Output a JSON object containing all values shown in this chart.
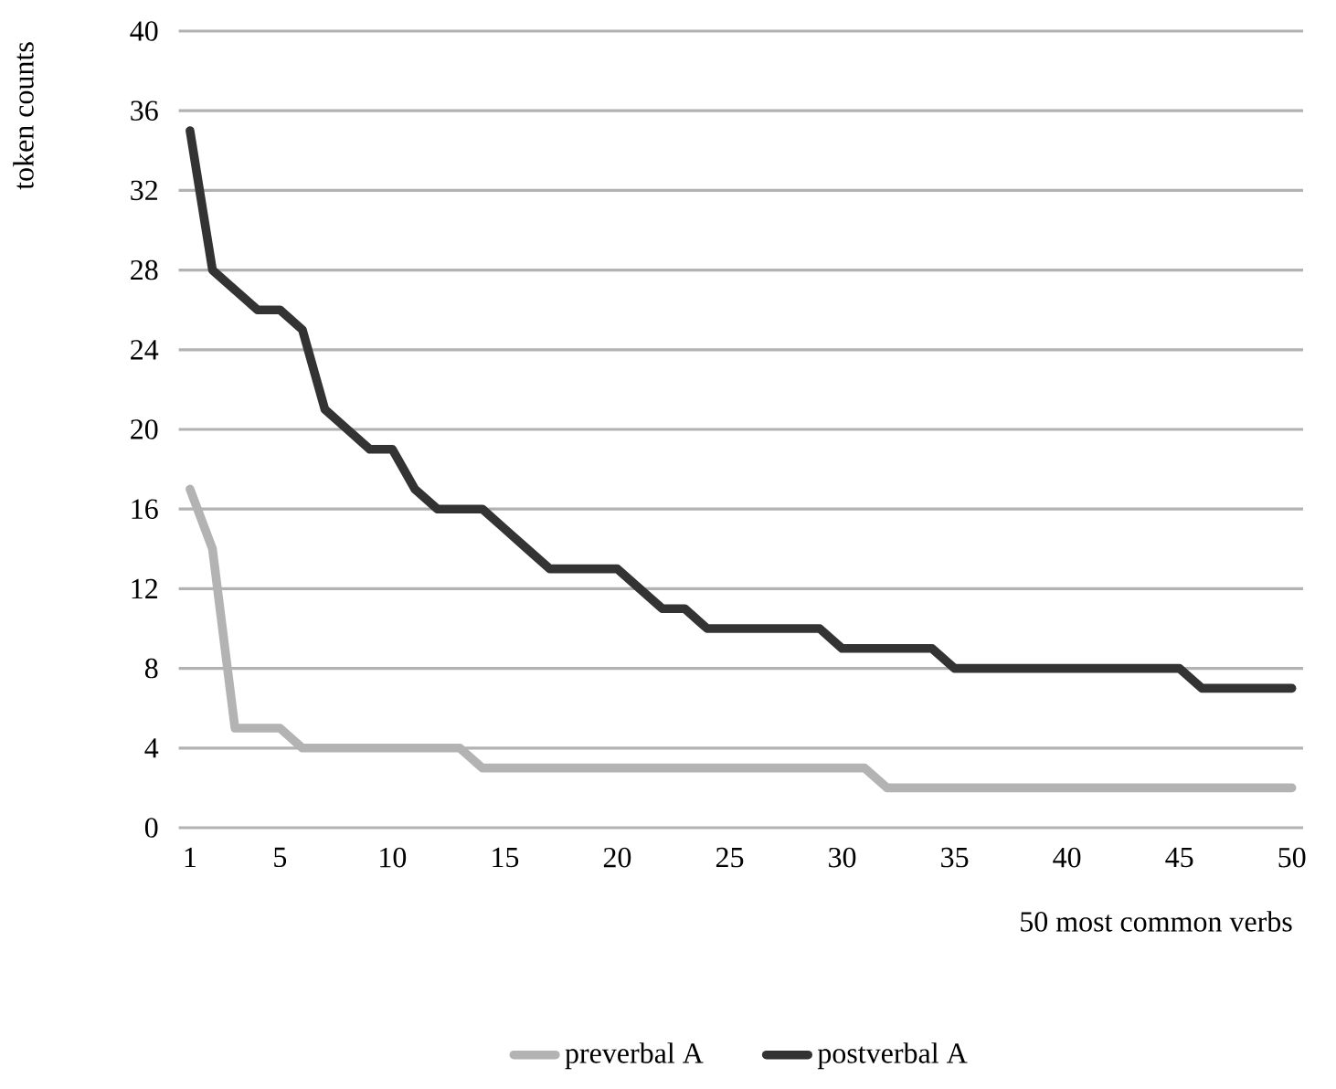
{
  "chart_data": {
    "type": "line",
    "xlabel": "50 most common verbs",
    "ylabel": "token counts",
    "x": [
      1,
      2,
      3,
      4,
      5,
      6,
      7,
      8,
      9,
      10,
      11,
      12,
      13,
      14,
      15,
      16,
      17,
      18,
      19,
      20,
      21,
      22,
      23,
      24,
      25,
      26,
      27,
      28,
      29,
      30,
      31,
      32,
      33,
      34,
      35,
      36,
      37,
      38,
      39,
      40,
      41,
      42,
      43,
      44,
      45,
      46,
      47,
      48,
      49,
      50
    ],
    "series": [
      {
        "name": "preverbal A",
        "color": "#b3b3b3",
        "values": [
          17,
          14,
          5,
          5,
          5,
          4,
          4,
          4,
          4,
          4,
          4,
          4,
          4,
          3,
          3,
          3,
          3,
          3,
          3,
          3,
          3,
          3,
          3,
          3,
          3,
          3,
          3,
          3,
          3,
          3,
          3,
          2,
          2,
          2,
          2,
          2,
          2,
          2,
          2,
          2,
          2,
          2,
          2,
          2,
          2,
          2,
          2,
          2,
          2,
          2
        ]
      },
      {
        "name": "postverbal A",
        "color": "#333333",
        "values": [
          35,
          28,
          27,
          26,
          26,
          25,
          21,
          20,
          19,
          19,
          17,
          16,
          16,
          16,
          15,
          14,
          13,
          13,
          13,
          13,
          12,
          11,
          11,
          10,
          10,
          10,
          10,
          10,
          10,
          9,
          9,
          9,
          9,
          9,
          8,
          8,
          8,
          8,
          8,
          8,
          8,
          8,
          8,
          8,
          8,
          7,
          7,
          7,
          7,
          7
        ]
      }
    ],
    "xlim": [
      0.5,
      50.5
    ],
    "xticks": [
      1,
      5,
      10,
      15,
      20,
      25,
      30,
      35,
      40,
      45,
      50
    ],
    "ylim": [
      0,
      40
    ],
    "yticks": [
      0,
      4,
      8,
      12,
      16,
      20,
      24,
      28,
      32,
      36,
      40
    ],
    "grid": "y",
    "legend": "bottom",
    "marker": "none",
    "line_style": "solid"
  }
}
